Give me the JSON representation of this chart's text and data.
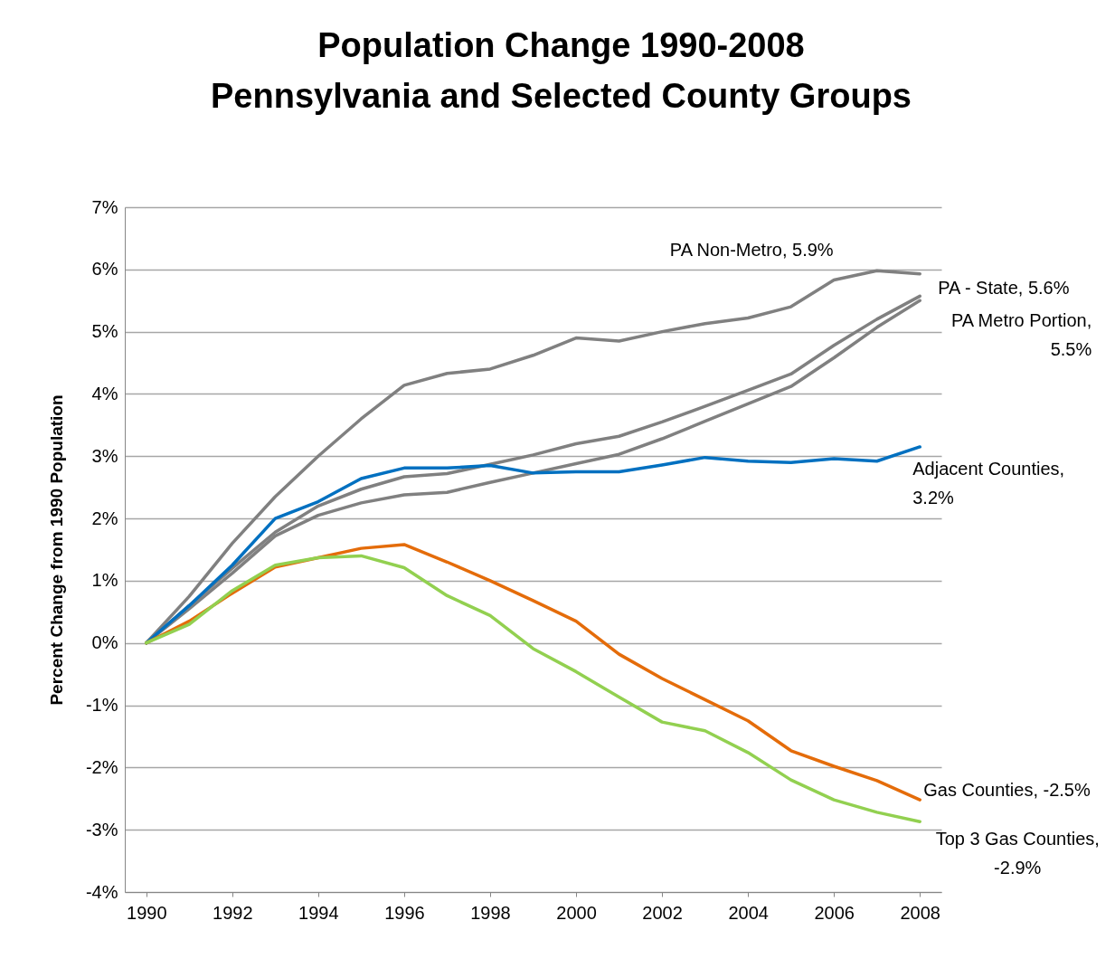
{
  "chart_data": {
    "type": "line",
    "title": "Population Change 1990-2008",
    "subtitle": "Pennsylvania and Selected County Groups",
    "ylabel": "Percent Change from 1990 Population",
    "x": [
      1990,
      1991,
      1992,
      1993,
      1994,
      1995,
      1996,
      1997,
      1998,
      1999,
      2000,
      2001,
      2002,
      2003,
      2004,
      2005,
      2006,
      2007,
      2008
    ],
    "series": [
      {
        "color": "#808080",
        "values": [
          0,
          0.75,
          1.6,
          2.35,
          3.0,
          3.6,
          4.14,
          4.33,
          4.4,
          4.62,
          4.9,
          4.85,
          5.0,
          5.13,
          5.22,
          5.4,
          5.83,
          5.98,
          5.93
        ]
      },
      {
        "color": "#808080",
        "values": [
          0,
          0.6,
          1.2,
          1.78,
          2.2,
          2.47,
          2.67,
          2.72,
          2.87,
          3.02,
          3.2,
          3.32,
          3.55,
          3.8,
          4.06,
          4.32,
          4.78,
          5.2,
          5.57
        ]
      },
      {
        "color": "#808080",
        "values": [
          0,
          0.55,
          1.12,
          1.72,
          2.05,
          2.25,
          2.38,
          2.42,
          2.58,
          2.73,
          2.88,
          3.03,
          3.28,
          3.56,
          3.84,
          4.12,
          4.58,
          5.07,
          5.5
        ]
      },
      {
        "color": "#0070c0",
        "values": [
          0,
          0.6,
          1.25,
          2.0,
          2.27,
          2.64,
          2.81,
          2.81,
          2.85,
          2.73,
          2.75,
          2.75,
          2.86,
          2.98,
          2.92,
          2.9,
          2.96,
          2.92,
          3.15
        ]
      },
      {
        "color": "#e46c0a",
        "values": [
          0,
          0.35,
          0.8,
          1.22,
          1.37,
          1.52,
          1.58,
          1.3,
          1.0,
          0.68,
          0.35,
          -0.18,
          -0.57,
          -0.91,
          -1.25,
          -1.73,
          -1.98,
          -2.21,
          -2.52
        ]
      },
      {
        "color": "#92d050",
        "values": [
          0,
          0.3,
          0.84,
          1.25,
          1.37,
          1.4,
          1.21,
          0.76,
          0.44,
          -0.09,
          -0.46,
          -0.87,
          -1.27,
          -1.41,
          -1.76,
          -2.2,
          -2.52,
          -2.72,
          -2.87
        ]
      }
    ],
    "annotations": [
      "PA Non-Metro, 5.9%",
      "PA - State, 5.6%",
      "PA Metro Portion, 5.5%",
      "Adjacent Counties, 3.2%",
      "Gas Counties, -2.5%",
      "Top 3 Gas Counties, -2.9%"
    ],
    "xlim": [
      1989.5,
      2008.5
    ],
    "xticks": [
      1990,
      1992,
      1994,
      1996,
      1998,
      2000,
      2002,
      2004,
      2006,
      2008
    ],
    "ylim": [
      -4,
      7
    ],
    "yticks": [
      {
        "value": -4,
        "label": "-4%"
      },
      {
        "value": -3,
        "label": "-3%"
      },
      {
        "value": -2,
        "label": "-2%"
      },
      {
        "value": -1,
        "label": "-1%"
      },
      {
        "value": 0,
        "label": "0%"
      },
      {
        "value": 1,
        "label": "1%"
      },
      {
        "value": 2,
        "label": "2%"
      },
      {
        "value": 3,
        "label": "3%"
      },
      {
        "value": 4,
        "label": "4%"
      },
      {
        "value": 5,
        "label": "5%"
      },
      {
        "value": 6,
        "label": "6%"
      },
      {
        "value": 7,
        "label": "7%"
      }
    ],
    "grid": "y",
    "marker": "none",
    "line_style": "solid"
  }
}
